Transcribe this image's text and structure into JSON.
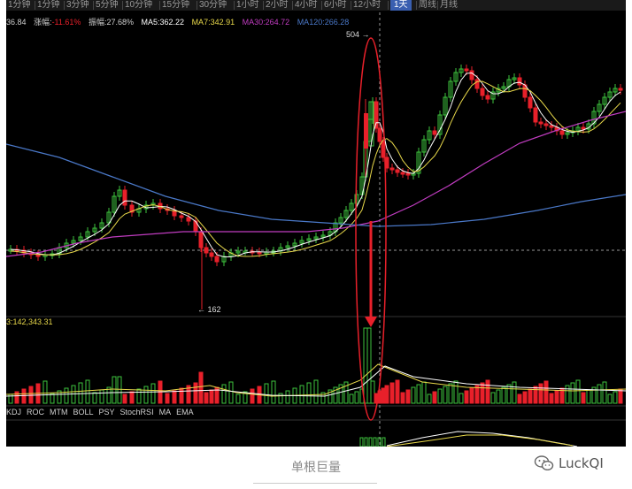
{
  "toolbar": {
    "items": [
      "1分钟",
      "1分钟",
      "3分钟",
      "5分钟",
      "10分钟",
      "15分钟",
      "30分钟",
      "1小时",
      "2小时",
      "4小时",
      "6小时",
      "12小时",
      "1天",
      "周线",
      "月线"
    ],
    "active": "1天"
  },
  "stats": {
    "price": "36.84",
    "change_label": "涨幅:",
    "change_value": "-11.61%",
    "amp_label": "振幅:",
    "amp_value": "27.68%",
    "ma5": "MA5:362.22",
    "ma7": "MA7:342.91",
    "ma30": "MA30:264.72",
    "ma120": "MA120:266.28"
  },
  "annotations": {
    "high": "504",
    "low": "162"
  },
  "volume_label": "3:142,343.31",
  "indicator_tabs": [
    "KDJ",
    "ROC",
    "MTM",
    "BOLL",
    "PSY",
    "StochRSI",
    "MA",
    "EMA"
  ],
  "caption": "单根巨量",
  "watermark": "LuckQI",
  "colors": {
    "up": "#3ec43e",
    "down": "#e8202a",
    "ma5": "#ffffff",
    "ma7": "#e8d84a",
    "ma30": "#c03cc0",
    "ma120": "#4a78c8",
    "highlight": "#e8202a"
  },
  "icons": {
    "watermark": "wechat-icon"
  }
}
